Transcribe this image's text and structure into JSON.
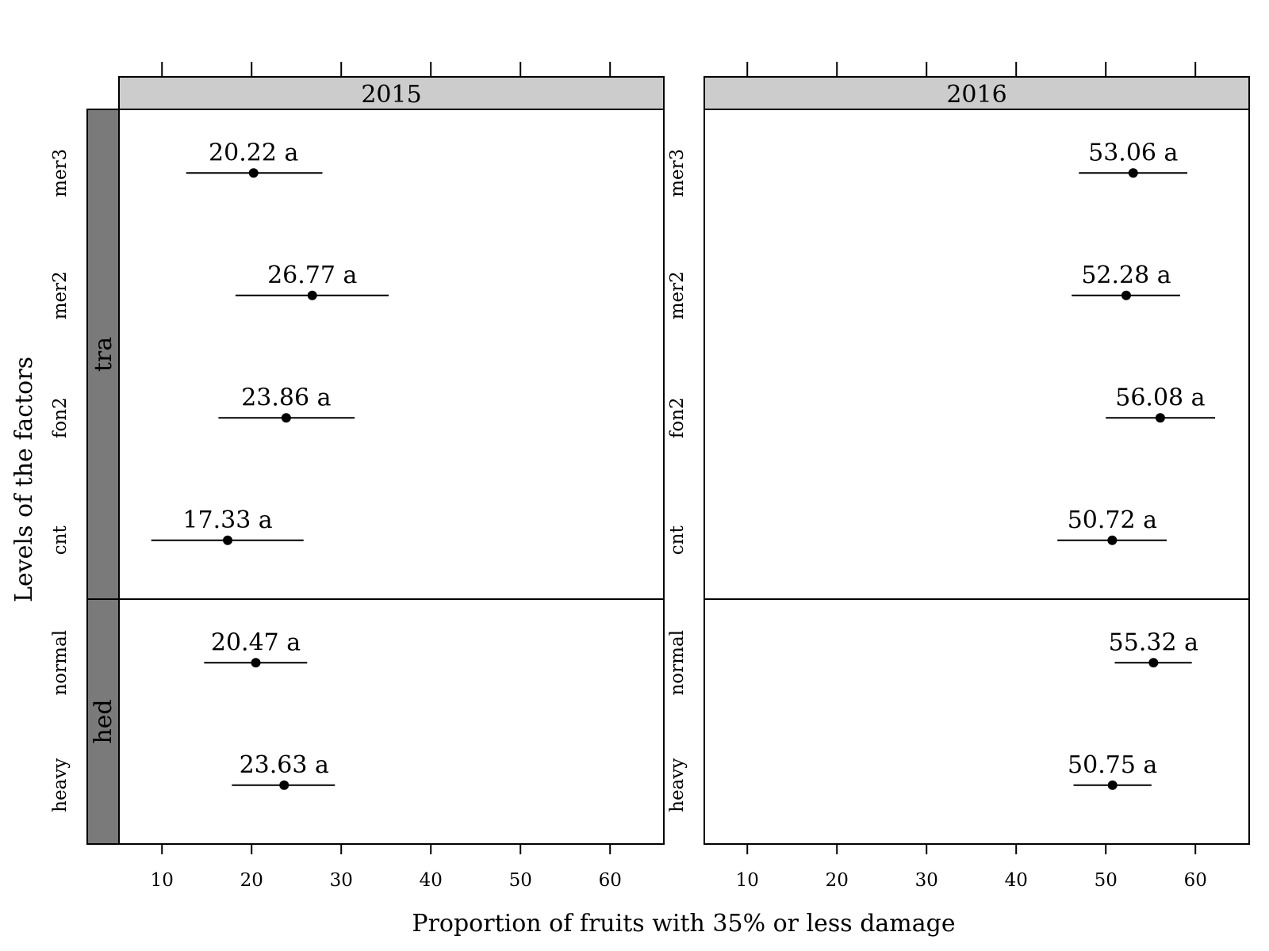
{
  "chart_data": {
    "type": "scatter",
    "xlabel": "Proportion of fruits with 35% or less damage",
    "ylabel": "Levels of the factors",
    "xlim": [
      5.2,
      66
    ],
    "x_ticks": [
      10,
      20,
      30,
      40,
      50,
      60
    ],
    "grid": false,
    "panels": [
      {
        "title": "2015",
        "groups": [
          {
            "name": "tra",
            "levels": [
              {
                "label": "mer3",
                "value": 20.22,
                "ci": [
                  12.7,
                  27.9
                ],
                "text": "20.22 a"
              },
              {
                "label": "mer2",
                "value": 26.77,
                "ci": [
                  18.2,
                  35.3
                ],
                "text": "26.77 a"
              },
              {
                "label": "fon2",
                "value": 23.86,
                "ci": [
                  16.3,
                  31.5
                ],
                "text": "23.86 a"
              },
              {
                "label": "cnt",
                "value": 17.33,
                "ci": [
                  8.8,
                  25.8
                ],
                "text": "17.33 a"
              }
            ]
          },
          {
            "name": "hed",
            "levels": [
              {
                "label": "normal",
                "value": 20.47,
                "ci": [
                  14.7,
                  26.2
                ],
                "text": "20.47 a"
              },
              {
                "label": "heavy",
                "value": 23.63,
                "ci": [
                  17.8,
                  29.3
                ],
                "text": "23.63 a"
              }
            ]
          }
        ]
      },
      {
        "title": "2016",
        "groups": [
          {
            "name": "tra",
            "levels": [
              {
                "label": "mer3",
                "value": 53.06,
                "ci": [
                  47.0,
                  59.1
                ],
                "text": "53.06 a"
              },
              {
                "label": "mer2",
                "value": 52.28,
                "ci": [
                  46.2,
                  58.3
                ],
                "text": "52.28 a"
              },
              {
                "label": "fon2",
                "value": 56.08,
                "ci": [
                  50.0,
                  62.2
                ],
                "text": "56.08 a"
              },
              {
                "label": "cnt",
                "value": 50.72,
                "ci": [
                  44.6,
                  56.8
                ],
                "text": "50.72 a"
              }
            ]
          },
          {
            "name": "hed",
            "levels": [
              {
                "label": "normal",
                "value": 55.32,
                "ci": [
                  51.0,
                  59.6
                ],
                "text": "55.32 a"
              },
              {
                "label": "heavy",
                "value": 50.75,
                "ci": [
                  46.4,
                  55.1
                ],
                "text": "50.75 a"
              }
            ]
          }
        ]
      }
    ]
  }
}
